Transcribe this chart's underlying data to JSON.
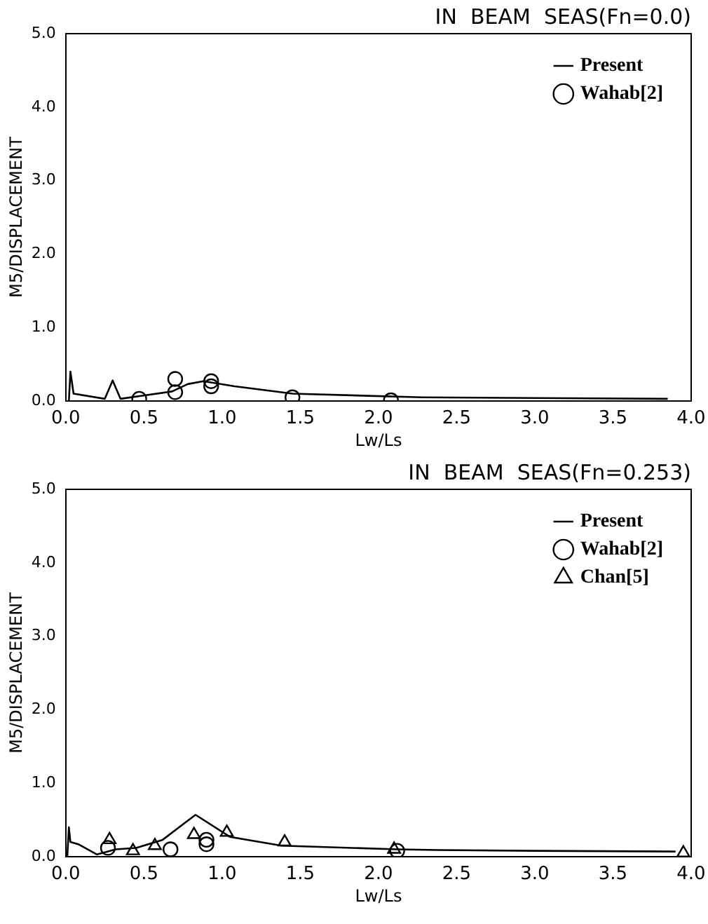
{
  "chart_data": [
    {
      "type": "line",
      "title": "IN  BEAM  SEAS(Fn=0.0)",
      "xlabel": "Lw/Ls",
      "ylabel": "M5/DISPLACEMENT",
      "xlim": [
        0,
        4
      ],
      "ylim": [
        0,
        5
      ],
      "xticks": [
        {
          "value": 0,
          "label": "0.0"
        },
        0.5,
        {
          "value": 1,
          "label": "1.0"
        },
        1.5,
        {
          "value": 2,
          "label": "2.0"
        },
        2.5,
        {
          "value": 3,
          "label": "3.0"
        },
        3.5,
        {
          "value": 4,
          "label": "4.0"
        }
      ],
      "yticks": [
        {
          "value": 0,
          "label": "0.0"
        },
        {
          "value": 1,
          "label": "1.0"
        },
        {
          "value": 2,
          "label": "2.0"
        },
        {
          "value": 3,
          "label": "3.0"
        },
        {
          "value": 4,
          "label": "4.0"
        },
        {
          "value": 5,
          "label": "5.0"
        }
      ],
      "grid": false,
      "legend": "top right",
      "series": [
        {
          "name": "Present",
          "type": "line",
          "color": "#000000",
          "marker": "none",
          "x": [
            0.02,
            0.03,
            0.05,
            0.25,
            0.3,
            0.35,
            0.48,
            0.68,
            0.78,
            0.88,
            1.08,
            1.45,
            2.28,
            3.0,
            3.85
          ],
          "values": [
            0,
            0.4,
            0.1,
            0.03,
            0.28,
            0.03,
            0.07,
            0.13,
            0.23,
            0.27,
            0.2,
            0.1,
            0.05,
            0.04,
            0.03
          ]
        },
        {
          "name": "Wahab[2]",
          "type": "scatter",
          "color": "#000000",
          "marker": "circle",
          "x": [
            0.47,
            0.7,
            0.7,
            0.93,
            0.93,
            1.45,
            2.08
          ],
          "values": [
            0.03,
            0.12,
            0.3,
            0.2,
            0.27,
            0.05,
            0.01
          ]
        }
      ]
    },
    {
      "type": "line",
      "title": "IN  BEAM  SEAS(Fn=0.253)",
      "xlabel": "Lw/Ls",
      "ylabel": "M5/DISPLACEMENT",
      "xlim": [
        0,
        4
      ],
      "ylim": [
        0,
        5
      ],
      "xticks": [
        {
          "value": 0,
          "label": "0.0"
        },
        0.5,
        {
          "value": 1,
          "label": "1.0"
        },
        1.5,
        {
          "value": 2,
          "label": "2.0"
        },
        2.5,
        {
          "value": 3,
          "label": "3.0"
        },
        3.5,
        {
          "value": 4,
          "label": "4.0"
        }
      ],
      "yticks": [
        {
          "value": 0,
          "label": "0.0"
        },
        {
          "value": 1,
          "label": "1.0"
        },
        {
          "value": 2,
          "label": "2.0"
        },
        {
          "value": 3,
          "label": "3.0"
        },
        {
          "value": 4,
          "label": "4.0"
        },
        {
          "value": 5,
          "label": "5.0"
        }
      ],
      "grid": false,
      "legend": "top right",
      "series": [
        {
          "name": "Present",
          "type": "line",
          "color": "#000000",
          "marker": "none",
          "x": [
            0.01,
            0.02,
            0.03,
            0.08,
            0.2,
            0.32,
            0.45,
            0.62,
            0.83,
            1.05,
            1.38,
            2.12,
            2.38,
            3.0,
            3.9
          ],
          "values": [
            0,
            0.4,
            0.2,
            0.17,
            0.03,
            0.1,
            0.12,
            0.23,
            0.57,
            0.27,
            0.15,
            0.1,
            0.09,
            0.08,
            0.07
          ]
        },
        {
          "name": "Wahab[2]",
          "type": "scatter",
          "color": "#000000",
          "marker": "circle",
          "x": [
            0.27,
            0.67,
            0.9,
            0.9,
            2.12
          ],
          "values": [
            0.12,
            0.1,
            0.23,
            0.17,
            0.08
          ]
        },
        {
          "name": "Chan[5]",
          "type": "scatter",
          "color": "#000000",
          "marker": "triangle",
          "x": [
            0.28,
            0.43,
            0.57,
            0.82,
            1.03,
            1.4,
            2.1,
            3.95
          ],
          "values": [
            0.23,
            0.08,
            0.15,
            0.3,
            0.33,
            0.2,
            0.1,
            0.05
          ]
        }
      ]
    }
  ]
}
